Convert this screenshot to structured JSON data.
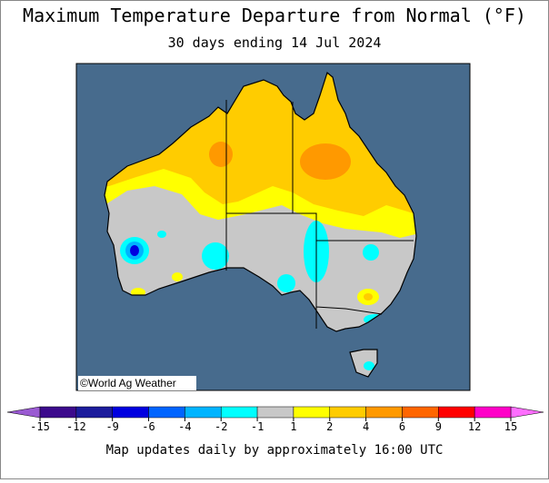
{
  "header": {
    "title": "Maximum Temperature Departure from Normal (°F)",
    "subtitle": "30 days ending 14 Jul 2024"
  },
  "map": {
    "credit": "©World Ag Weather"
  },
  "legend": {
    "ticks": [
      -15,
      -12,
      -9,
      -6,
      -4,
      -2,
      -1,
      1,
      2,
      4,
      6,
      9,
      12,
      15
    ],
    "colors": [
      "#3c0a8c",
      "#1c1c9c",
      "#0000e0",
      "#0064ff",
      "#00b4ff",
      "#00ffff",
      "#c8c8c8",
      "#ffff00",
      "#ffcc00",
      "#ff9900",
      "#ff6600",
      "#ff0000",
      "#ff00c8"
    ],
    "under_color": "#9a5ad2",
    "over_color": "#ff6eff"
  },
  "footer": "Map updates daily by approximately 16:00 UTC"
}
